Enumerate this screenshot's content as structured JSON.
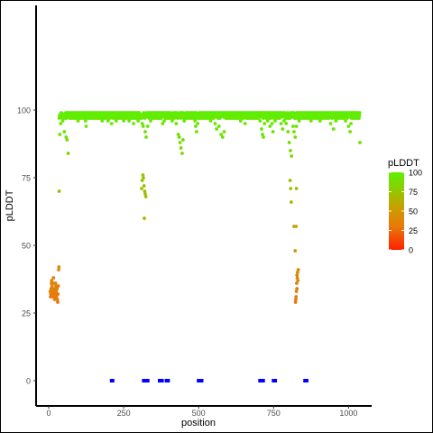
{
  "chart_data": {
    "type": "scatter",
    "xlabel": "position",
    "ylabel": "pLDDT",
    "xlim": [
      -20,
      1060
    ],
    "ylim": [
      -5,
      102
    ],
    "x_ticks": [
      0,
      250,
      500,
      750,
      1000
    ],
    "y_ticks": [
      0,
      25,
      50,
      75,
      100
    ],
    "grid": false,
    "legend": {
      "title": "pLDDT",
      "placement": "right",
      "type": "colorbar",
      "ticks": [
        0,
        25,
        50,
        75,
        100
      ],
      "colors": [
        "#ff2000",
        "#e8790a",
        "#c8a000",
        "#88d000",
        "#5ef000"
      ]
    },
    "marker_color_rule": "color by pLDDT value using legend gradient",
    "segments": [
      {
        "x_start": 35,
        "x_end": 305,
        "base": 98,
        "dips": [
          [
            37,
            91
          ],
          [
            40,
            95
          ],
          [
            47,
            96
          ],
          [
            52,
            92
          ],
          [
            58,
            90
          ],
          [
            61,
            89
          ],
          [
            65,
            84
          ],
          [
            98,
            96
          ],
          [
            123,
            96
          ],
          [
            125,
            94
          ],
          [
            163,
            97
          ],
          [
            178,
            96
          ],
          [
            198,
            96
          ],
          [
            210,
            95
          ],
          [
            225,
            96
          ],
          [
            240,
            97
          ],
          [
            250,
            96
          ],
          [
            268,
            96
          ],
          [
            283,
            95
          ],
          [
            298,
            96
          ]
        ]
      },
      {
        "x_start": 310,
        "x_end": 790,
        "base": 98,
        "dips": [
          [
            312,
            95
          ],
          [
            315,
            94
          ],
          [
            322,
            92
          ],
          [
            325,
            90
          ],
          [
            330,
            94
          ],
          [
            340,
            96
          ],
          [
            355,
            97
          ],
          [
            368,
            97
          ],
          [
            380,
            95
          ],
          [
            385,
            96
          ],
          [
            400,
            97
          ],
          [
            412,
            96
          ],
          [
            425,
            95
          ],
          [
            432,
            91
          ],
          [
            435,
            90
          ],
          [
            438,
            88
          ],
          [
            441,
            86
          ],
          [
            445,
            84
          ],
          [
            448,
            89
          ],
          [
            452,
            96
          ],
          [
            455,
            97
          ],
          [
            470,
            97
          ],
          [
            488,
            96
          ],
          [
            490,
            94
          ],
          [
            493,
            92
          ],
          [
            497,
            95
          ],
          [
            510,
            97
          ],
          [
            525,
            97
          ],
          [
            540,
            96
          ],
          [
            555,
            95
          ],
          [
            560,
            93
          ],
          [
            568,
            94
          ],
          [
            575,
            91
          ],
          [
            580,
            90
          ],
          [
            585,
            92
          ],
          [
            600,
            97
          ],
          [
            625,
            97
          ],
          [
            640,
            96
          ],
          [
            655,
            95
          ],
          [
            675,
            97
          ],
          [
            695,
            97
          ],
          [
            705,
            96
          ],
          [
            710,
            93
          ],
          [
            713,
            91
          ],
          [
            716,
            90
          ],
          [
            720,
            95
          ],
          [
            730,
            96
          ],
          [
            738,
            94
          ],
          [
            740,
            97
          ],
          [
            745,
            95
          ],
          [
            748,
            92
          ],
          [
            755,
            96
          ],
          [
            765,
            97
          ],
          [
            775,
            95
          ],
          [
            780,
            93
          ],
          [
            785,
            96
          ]
        ]
      },
      {
        "x_start": 790,
        "x_end": 1038,
        "base": 98,
        "dips": [
          [
            792,
            95
          ],
          [
            798,
            92
          ],
          [
            802,
            88
          ],
          [
            806,
            85
          ],
          [
            810,
            83
          ],
          [
            815,
            94
          ],
          [
            818,
            92
          ],
          [
            822,
            90
          ],
          [
            826,
            94
          ],
          [
            835,
            96
          ],
          [
            850,
            97
          ],
          [
            875,
            96
          ],
          [
            890,
            97
          ],
          [
            905,
            96
          ],
          [
            925,
            97
          ],
          [
            940,
            95
          ],
          [
            950,
            93
          ],
          [
            958,
            96
          ],
          [
            970,
            97
          ],
          [
            990,
            96
          ],
          [
            1000,
            94
          ],
          [
            1005,
            92
          ],
          [
            1008,
            95
          ],
          [
            1020,
            97
          ],
          [
            1038,
            88
          ]
        ]
      }
    ],
    "points": [
      {
        "x": 5,
        "y": 33
      },
      {
        "x": 6,
        "y": 31
      },
      {
        "x": 7,
        "y": 32
      },
      {
        "x": 8,
        "y": 34
      },
      {
        "x": 9,
        "y": 36
      },
      {
        "x": 10,
        "y": 37
      },
      {
        "x": 11,
        "y": 35
      },
      {
        "x": 12,
        "y": 33
      },
      {
        "x": 13,
        "y": 32
      },
      {
        "x": 14,
        "y": 31
      },
      {
        "x": 15,
        "y": 34
      },
      {
        "x": 16,
        "y": 38
      },
      {
        "x": 17,
        "y": 36
      },
      {
        "x": 18,
        "y": 33
      },
      {
        "x": 19,
        "y": 31
      },
      {
        "x": 20,
        "y": 30
      },
      {
        "x": 21,
        "y": 32
      },
      {
        "x": 22,
        "y": 34
      },
      {
        "x": 23,
        "y": 36
      },
      {
        "x": 24,
        "y": 35
      },
      {
        "x": 25,
        "y": 33
      },
      {
        "x": 26,
        "y": 31
      },
      {
        "x": 27,
        "y": 32
      },
      {
        "x": 28,
        "y": 34
      },
      {
        "x": 29,
        "y": 30
      },
      {
        "x": 30,
        "y": 29
      },
      {
        "x": 31,
        "y": 32
      },
      {
        "x": 32,
        "y": 35
      },
      {
        "x": 33,
        "y": 41
      },
      {
        "x": 34,
        "y": 42
      },
      {
        "x": 35,
        "y": 70
      },
      {
        "x": 310,
        "y": 71
      },
      {
        "x": 312,
        "y": 74
      },
      {
        "x": 314,
        "y": 76
      },
      {
        "x": 316,
        "y": 75
      },
      {
        "x": 318,
        "y": 72
      },
      {
        "x": 320,
        "y": 70
      },
      {
        "x": 322,
        "y": 69
      },
      {
        "x": 324,
        "y": 68
      },
      {
        "x": 319,
        "y": 60
      },
      {
        "x": 805,
        "y": 74
      },
      {
        "x": 807,
        "y": 71
      },
      {
        "x": 809,
        "y": 66
      },
      {
        "x": 818,
        "y": 57
      },
      {
        "x": 822,
        "y": 48
      },
      {
        "x": 825,
        "y": 57
      },
      {
        "x": 826,
        "y": 71
      },
      {
        "x": 827,
        "y": 36
      },
      {
        "x": 829,
        "y": 38
      },
      {
        "x": 830,
        "y": 40
      },
      {
        "x": 832,
        "y": 41
      },
      {
        "x": 828,
        "y": 34
      },
      {
        "x": 826,
        "y": 33
      },
      {
        "x": 825,
        "y": 31
      },
      {
        "x": 824,
        "y": 30
      },
      {
        "x": 823,
        "y": 29
      },
      {
        "x": 828,
        "y": 39
      },
      {
        "x": 831,
        "y": 37
      }
    ],
    "zero_points_x": [
      210,
      213,
      317,
      320,
      323,
      327,
      330,
      370,
      375,
      378,
      393,
      398,
      500,
      505,
      510,
      705,
      710,
      715,
      750,
      755,
      855,
      860
    ],
    "zero_color": "#0000ff"
  }
}
